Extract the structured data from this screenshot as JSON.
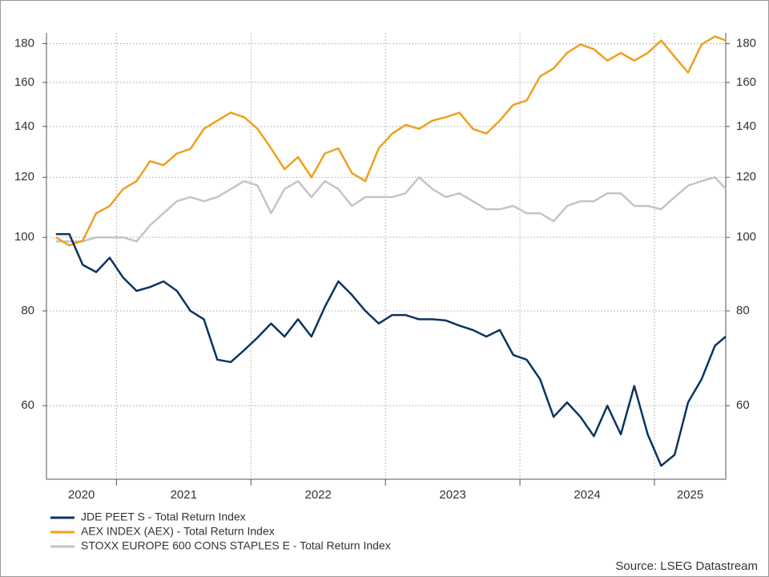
{
  "chart_data": {
    "type": "line",
    "x": [
      2020.55,
      2020.65,
      2020.75,
      2020.85,
      2020.95,
      2021.05,
      2021.15,
      2021.25,
      2021.35,
      2021.45,
      2021.55,
      2021.65,
      2021.75,
      2021.85,
      2021.95,
      2022.05,
      2022.15,
      2022.25,
      2022.35,
      2022.45,
      2022.55,
      2022.65,
      2022.75,
      2022.85,
      2022.95,
      2023.05,
      2023.15,
      2023.25,
      2023.35,
      2023.45,
      2023.55,
      2023.65,
      2023.75,
      2023.85,
      2023.95,
      2024.05,
      2024.15,
      2024.25,
      2024.35,
      2024.45,
      2024.55,
      2024.65,
      2024.75,
      2024.85,
      2024.95,
      2025.05,
      2025.15,
      2025.25,
      2025.35,
      2025.45,
      2025.53
    ],
    "series": [
      {
        "name": "JDE PEET S - Total Return Index",
        "color": "#0b3460",
        "values": [
          101,
          101,
          92,
          90,
          94,
          88.5,
          85,
          86,
          87.5,
          85,
          80,
          78,
          69,
          68.5,
          71,
          73.8,
          77,
          74,
          78,
          74,
          81,
          87.5,
          84,
          80,
          77,
          79,
          79,
          78,
          78,
          77.7,
          76.5,
          75.5,
          74,
          75.5,
          70,
          69,
          65,
          58,
          60.6,
          58,
          54.7,
          60,
          55,
          63.7,
          55,
          50,
          51.7,
          60.6,
          65,
          72,
          74
        ]
      },
      {
        "name": "AEX INDEX (AEX) - Total Return Index",
        "color": "#f0a01e",
        "values": [
          100,
          97.6,
          99,
          107.6,
          110,
          115.8,
          118.6,
          126,
          124.5,
          129,
          130.8,
          139,
          142.5,
          146,
          144,
          139,
          131,
          123,
          127.6,
          120,
          129,
          131,
          121.6,
          118.6,
          131,
          137,
          140.7,
          139,
          142.5,
          144,
          146,
          139,
          137,
          142.5,
          149.5,
          151.5,
          163,
          167,
          175,
          179.6,
          177,
          171,
          175,
          171,
          175,
          181.7,
          173,
          164.9,
          179.6,
          184,
          181.7
        ]
      },
      {
        "name": "STOXX EUROPE 600 CONS STAPLES E - Total Return Index",
        "color": "#c4c4c4",
        "values": [
          98.8,
          98.8,
          98.8,
          100,
          100,
          100,
          98.8,
          103.7,
          107.6,
          111.6,
          113,
          111.6,
          113,
          115.8,
          118.6,
          117,
          107.6,
          115.8,
          118.6,
          113,
          118.6,
          115.8,
          110,
          113,
          113,
          113,
          114.3,
          120,
          115.8,
          113,
          114.3,
          111.6,
          108.9,
          108.9,
          110,
          107.6,
          107.6,
          105,
          110,
          111.6,
          111.6,
          114.3,
          114.3,
          110,
          110,
          108.9,
          113,
          117,
          118.6,
          120,
          115.8
        ]
      }
    ],
    "xlim": [
      2020.48,
      2025.53
    ],
    "xticks": [
      2021,
      2022,
      2023,
      2024,
      2025
    ],
    "x_labels": [
      2020,
      2021,
      2022,
      2023,
      2024,
      2025
    ],
    "ylim": [
      48,
      186
    ],
    "yticks": [
      60,
      80,
      100,
      120,
      140,
      160,
      180
    ],
    "log_scale": true,
    "grid": true,
    "source": "Source: LSEG Datastream"
  }
}
